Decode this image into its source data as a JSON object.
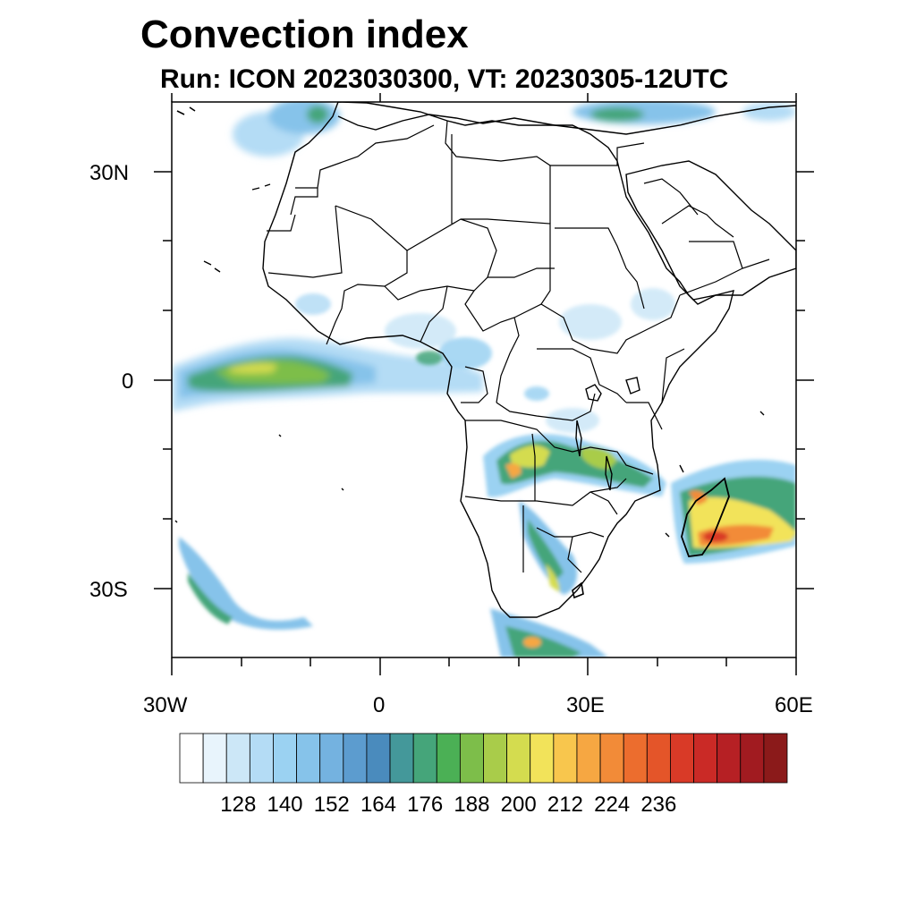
{
  "title": "Convection index",
  "subtitle": "Run: ICON 2023030300,  VT: 20230305-12UTC",
  "axes": {
    "lat_labels": [
      "30N",
      "0",
      "30S"
    ],
    "lon_labels": [
      "30W",
      "0",
      "30E",
      "60E"
    ]
  },
  "colorbar": {
    "labels": [
      "128",
      "140",
      "152",
      "164",
      "176",
      "188",
      "200",
      "212",
      "224",
      "236"
    ],
    "colors": [
      "#ffffff",
      "#e8f4fc",
      "#cce7f7",
      "#b4dcf5",
      "#9bd2f2",
      "#86c3ea",
      "#74b2e0",
      "#5c9ccf",
      "#4a8bbd",
      "#44989a",
      "#45a57a",
      "#4bb055",
      "#7dbe4a",
      "#a9cc4a",
      "#d4dc4f",
      "#f2e35a",
      "#f8c64d",
      "#f6a742",
      "#f28b38",
      "#ec6d2e",
      "#e45529",
      "#d93a27",
      "#ca2a26",
      "#b62024",
      "#a11b20",
      "#8b1a1a"
    ]
  },
  "colors": {
    "frame": "#000000",
    "background": "#ffffff"
  }
}
